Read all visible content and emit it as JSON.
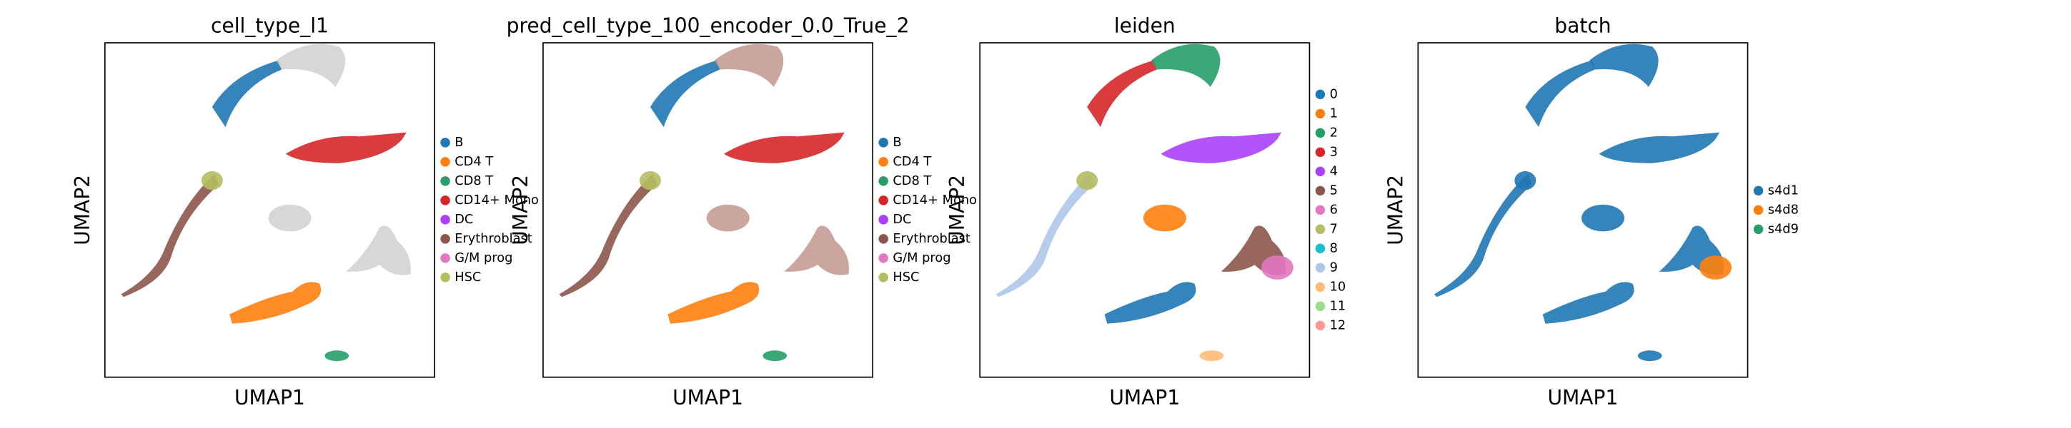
{
  "chart_data": [
    {
      "type": "scatter",
      "title": "cell_type_l1",
      "xlabel": "UMAP1",
      "ylabel": "UMAP2",
      "legend": "right",
      "series": [
        {
          "name": "B",
          "color": "#1f77b4"
        },
        {
          "name": "CD4 T",
          "color": "#ff7f0e"
        },
        {
          "name": "CD8 T",
          "color": "#279e68"
        },
        {
          "name": "CD14+ Mono",
          "color": "#d62728"
        },
        {
          "name": "DC",
          "color": "#aa40fc"
        },
        {
          "name": "Erythroblast",
          "color": "#8c564b"
        },
        {
          "name": "G/M prog",
          "color": "#e377c2"
        },
        {
          "name": "HSC",
          "color": "#b5bd61"
        }
      ]
    },
    {
      "type": "scatter",
      "title": "pred_cell_type_100_encoder_0.0_True_2",
      "xlabel": "UMAP1",
      "ylabel": "UMAP2",
      "legend": "right",
      "series": [
        {
          "name": "B",
          "color": "#1f77b4"
        },
        {
          "name": "CD4 T",
          "color": "#ff7f0e"
        },
        {
          "name": "CD8 T",
          "color": "#279e68"
        },
        {
          "name": "CD14+ Mono",
          "color": "#d62728"
        },
        {
          "name": "DC",
          "color": "#aa40fc"
        },
        {
          "name": "Erythroblast",
          "color": "#8c564b"
        },
        {
          "name": "G/M prog",
          "color": "#e377c2"
        },
        {
          "name": "HSC",
          "color": "#b5bd61"
        }
      ]
    },
    {
      "type": "scatter",
      "title": "leiden",
      "xlabel": "UMAP1",
      "ylabel": "UMAP2",
      "legend": "right",
      "series": [
        {
          "name": "0",
          "color": "#1f77b4"
        },
        {
          "name": "1",
          "color": "#ff7f0e"
        },
        {
          "name": "2",
          "color": "#279e68"
        },
        {
          "name": "3",
          "color": "#d62728"
        },
        {
          "name": "4",
          "color": "#aa40fc"
        },
        {
          "name": "5",
          "color": "#8c564b"
        },
        {
          "name": "6",
          "color": "#e377c2"
        },
        {
          "name": "7",
          "color": "#b5bd61"
        },
        {
          "name": "8",
          "color": "#17becf"
        },
        {
          "name": "9",
          "color": "#aec7e8"
        },
        {
          "name": "10",
          "color": "#ffbb78"
        },
        {
          "name": "11",
          "color": "#98df8a"
        },
        {
          "name": "12",
          "color": "#ff9896"
        }
      ]
    },
    {
      "type": "scatter",
      "title": "batch",
      "xlabel": "UMAP1",
      "ylabel": "UMAP2",
      "legend": "right",
      "series": [
        {
          "name": "s4d1",
          "color": "#1f77b4"
        },
        {
          "name": "s4d8",
          "color": "#ff7f0e"
        },
        {
          "name": "s4d9",
          "color": "#279e68"
        }
      ]
    }
  ]
}
